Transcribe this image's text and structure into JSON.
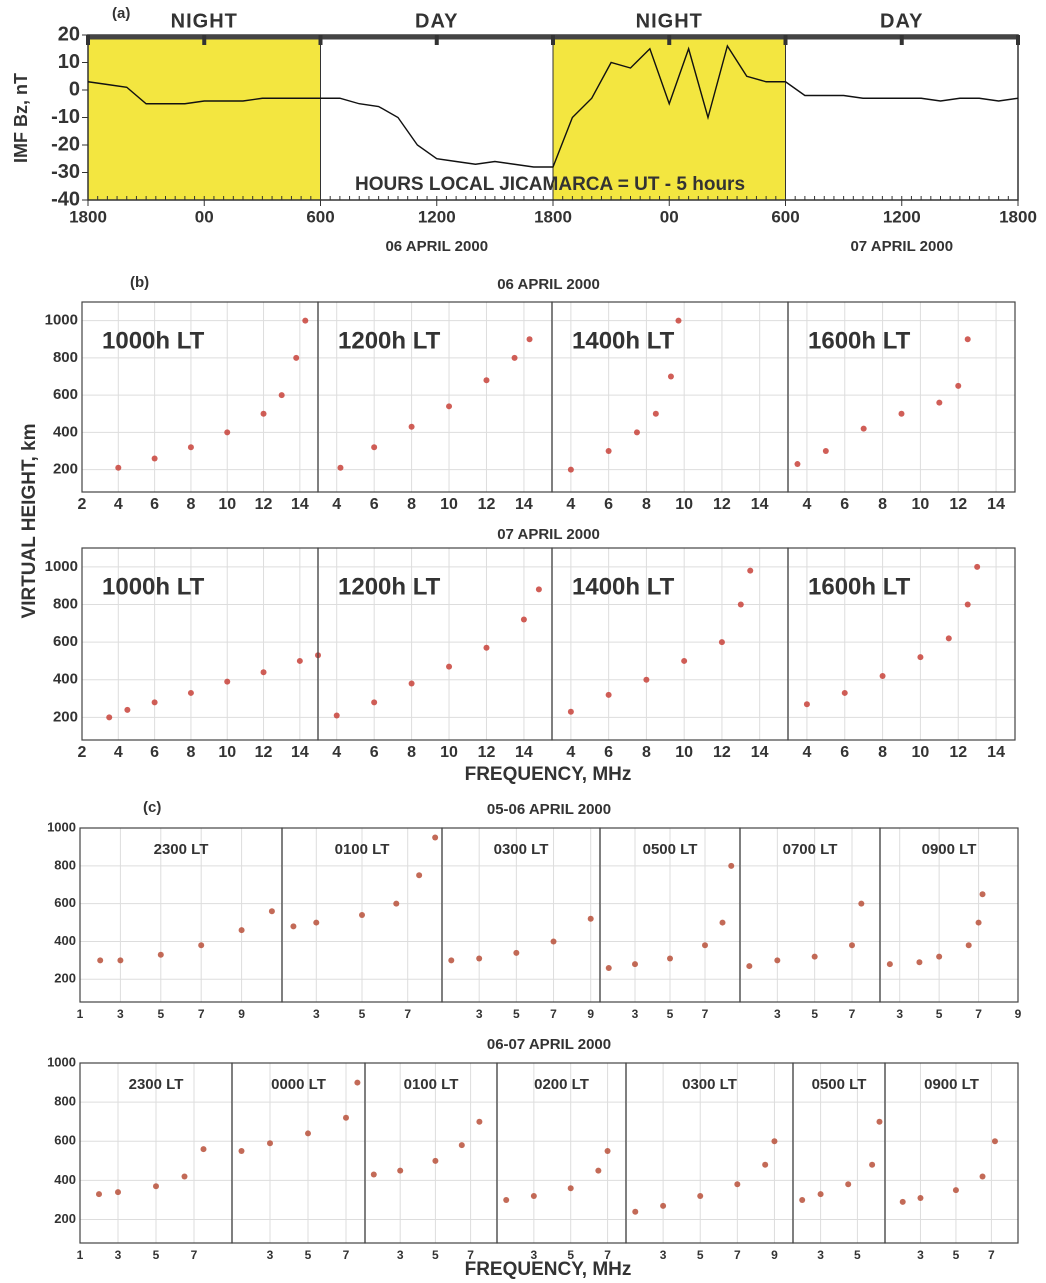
{
  "chart_data": [
    {
      "type": "line",
      "panel_label": "(a)",
      "ylabel": "IMF Bz, nT",
      "subtitle": "HOURS  LOCAL  JICAMARCA = UT -  5 hours",
      "color": "#111111",
      "shade_color": "#f3e640",
      "periods": [
        {
          "label": "NIGHT",
          "start": 0,
          "end": 12,
          "shaded": true
        },
        {
          "label": "DAY",
          "start": 12,
          "end": 24,
          "shaded": false
        },
        {
          "label": "NIGHT",
          "start": 24,
          "end": 36,
          "shaded": true
        },
        {
          "label": "DAY",
          "start": 36,
          "end": 48,
          "shaded": false
        }
      ],
      "date_labels": [
        {
          "text": "06 APRIL  2000",
          "x": 18
        },
        {
          "text": "07 APRIL  2000",
          "x": 42
        }
      ],
      "x": [
        0,
        1,
        2,
        3,
        4,
        5,
        6,
        7,
        8,
        9,
        10,
        11,
        12,
        13,
        14,
        15,
        16,
        17,
        18,
        19,
        20,
        21,
        22,
        23,
        24,
        25,
        26,
        27,
        28,
        29,
        30,
        31,
        32,
        33,
        34,
        35,
        36,
        37,
        38,
        39,
        40,
        41,
        42,
        43,
        44,
        45,
        46,
        47,
        48
      ],
      "values": [
        3,
        2,
        1,
        -5,
        -5,
        -5,
        -4,
        -4,
        -4,
        -3,
        -3,
        -3,
        -3,
        -3,
        -5,
        -6,
        -10,
        -20,
        -25,
        -26,
        -27,
        -26,
        -27,
        -28,
        -28,
        -10,
        -3,
        10,
        8,
        15,
        -5,
        15,
        -10,
        16,
        5,
        3,
        3,
        -2,
        -2,
        -2,
        -3,
        -3,
        -3,
        -3,
        -4,
        -3,
        -3,
        -4,
        -3
      ],
      "xlim": [
        0,
        48
      ],
      "xticks": [
        {
          "value": 0,
          "label": "1800"
        },
        {
          "value": 6,
          "label": "00"
        },
        {
          "value": 12,
          "label": "600"
        },
        {
          "value": 18,
          "label": "1200"
        },
        {
          "value": 24,
          "label": "1800"
        },
        {
          "value": 30,
          "label": "00"
        },
        {
          "value": 36,
          "label": "600"
        },
        {
          "value": 42,
          "label": "1200"
        },
        {
          "value": 48,
          "label": "1800"
        }
      ],
      "ylim": [
        -40,
        20
      ],
      "yticks": [
        -40,
        -30,
        -20,
        -10,
        0,
        10,
        20
      ]
    },
    {
      "type": "ionogram-row",
      "panel_label": "(b)",
      "title": "06 APRIL  2000",
      "ylabel": "VIRTUAL HEIGHT, km",
      "color": "#c8423a",
      "ylim": [
        80,
        1100
      ],
      "yticks": [
        200,
        400,
        600,
        800,
        1000
      ],
      "panels": [
        {
          "label": "1000h LT",
          "xlim": [
            2,
            15
          ],
          "xticks": [
            2,
            4,
            6,
            8,
            10,
            12,
            14
          ],
          "x": [
            4,
            6,
            8,
            10,
            12,
            13,
            13.8,
            14.3
          ],
          "values": [
            210,
            260,
            320,
            400,
            500,
            600,
            800,
            1000
          ]
        },
        {
          "label": "1200h LT",
          "xlim": [
            3,
            15.5
          ],
          "xticks": [
            4,
            6,
            8,
            10,
            12,
            14
          ],
          "x": [
            4.2,
            6,
            8,
            10,
            12,
            13.5,
            14.3
          ],
          "values": [
            210,
            320,
            430,
            540,
            680,
            800,
            900
          ]
        },
        {
          "label": "1400h LT",
          "xlim": [
            3,
            15.5
          ],
          "xticks": [
            4,
            6,
            8,
            10,
            12,
            14
          ],
          "x": [
            4,
            6,
            7.5,
            8.5,
            9.3,
            9.7
          ],
          "values": [
            200,
            300,
            400,
            500,
            700,
            1000
          ]
        },
        {
          "label": "1600h LT",
          "xlim": [
            3,
            15
          ],
          "xticks": [
            4,
            6,
            8,
            10,
            12,
            14
          ],
          "x": [
            3.5,
            5,
            7,
            9,
            11,
            12,
            12.5
          ],
          "values": [
            230,
            300,
            420,
            500,
            560,
            650,
            900
          ]
        }
      ]
    },
    {
      "type": "ionogram-row",
      "title": "07 APRIL  2000",
      "xlabel": "FREQUENCY, MHz",
      "color": "#c8423a",
      "ylim": [
        80,
        1100
      ],
      "yticks": [
        200,
        400,
        600,
        800,
        1000
      ],
      "panels": [
        {
          "label": "1000h LT",
          "xlim": [
            2,
            15
          ],
          "xticks": [
            2,
            4,
            6,
            8,
            10,
            12,
            14
          ],
          "x": [
            3.5,
            4.5,
            6,
            8,
            10,
            12,
            14,
            15
          ],
          "values": [
            200,
            240,
            280,
            330,
            390,
            440,
            500,
            530
          ]
        },
        {
          "label": "1200h LT",
          "xlim": [
            3,
            15.5
          ],
          "xticks": [
            4,
            6,
            8,
            10,
            12,
            14
          ],
          "x": [
            4,
            6,
            8,
            10,
            12,
            14,
            14.8
          ],
          "values": [
            210,
            280,
            380,
            470,
            570,
            720,
            880
          ]
        },
        {
          "label": "1400h LT",
          "xlim": [
            3,
            15.5
          ],
          "xticks": [
            4,
            6,
            8,
            10,
            12,
            14
          ],
          "x": [
            4,
            6,
            8,
            10,
            12,
            13,
            13.5
          ],
          "values": [
            230,
            320,
            400,
            500,
            600,
            800,
            980
          ]
        },
        {
          "label": "1600h LT",
          "xlim": [
            3,
            15
          ],
          "xticks": [
            4,
            6,
            8,
            10,
            12,
            14
          ],
          "x": [
            4,
            6,
            8,
            10,
            11.5,
            12.5,
            13
          ],
          "values": [
            270,
            330,
            420,
            520,
            620,
            800,
            1000
          ]
        }
      ]
    },
    {
      "type": "ionogram-row",
      "panel_label": "(c)",
      "title": "05-06 APRIL  2000",
      "color": "#b8503a",
      "ylim": [
        80,
        1000
      ],
      "yticks": [
        200,
        400,
        600,
        800,
        1000
      ],
      "panels": [
        {
          "label": "2300 LT",
          "xlim": [
            1,
            11
          ],
          "xticks": [
            1,
            3,
            5,
            7,
            9
          ],
          "x": [
            2,
            3,
            5,
            7,
            9,
            10.5
          ],
          "values": [
            300,
            300,
            330,
            380,
            460,
            560
          ]
        },
        {
          "label": "0100 LT",
          "xlim": [
            1.5,
            8.5
          ],
          "xticks": [
            3,
            5,
            7
          ],
          "x": [
            2,
            3,
            5,
            6.5,
            7.5,
            8.2
          ],
          "values": [
            480,
            500,
            540,
            600,
            750,
            950
          ]
        },
        {
          "label": "0300 LT",
          "xlim": [
            1,
            9.5
          ],
          "xticks": [
            3,
            5,
            7,
            9
          ],
          "x": [
            1.5,
            3,
            5,
            7,
            9
          ],
          "values": [
            300,
            310,
            340,
            400,
            520
          ]
        },
        {
          "label": "0500 LT",
          "xlim": [
            1,
            9
          ],
          "xticks": [
            3,
            5,
            7
          ],
          "x": [
            1.5,
            3,
            5,
            7,
            8,
            8.5
          ],
          "values": [
            260,
            280,
            310,
            380,
            500,
            800
          ]
        },
        {
          "label": "0700 LT",
          "xlim": [
            1,
            8.5
          ],
          "xticks": [
            3,
            5,
            7
          ],
          "x": [
            1.5,
            3,
            5,
            7,
            7.5
          ],
          "values": [
            270,
            300,
            320,
            380,
            600
          ]
        },
        {
          "label": "0900 LT",
          "xlim": [
            2,
            9
          ],
          "xticks": [
            3,
            5,
            7,
            9
          ],
          "x": [
            2.5,
            4,
            5,
            6.5,
            7,
            7.2
          ],
          "values": [
            280,
            290,
            320,
            380,
            500,
            650
          ]
        }
      ]
    },
    {
      "type": "ionogram-row",
      "title": "06-07 APRIL  2000",
      "xlabel": "FREQUENCY, MHz",
      "color": "#b8503a",
      "ylim": [
        80,
        1000
      ],
      "yticks": [
        200,
        400,
        600,
        800,
        1000
      ],
      "panels": [
        {
          "label": "2300 LT",
          "xlim": [
            1,
            9
          ],
          "xticks": [
            1,
            3,
            5,
            7
          ],
          "x": [
            2,
            3,
            5,
            6.5,
            7.5
          ],
          "values": [
            330,
            340,
            370,
            420,
            560
          ]
        },
        {
          "label": "0000 LT",
          "xlim": [
            1,
            8
          ],
          "xticks": [
            3,
            5,
            7
          ],
          "x": [
            1.5,
            3,
            5,
            7,
            7.6
          ],
          "values": [
            550,
            590,
            640,
            720,
            900
          ]
        },
        {
          "label": "0100 LT",
          "xlim": [
            1,
            8.5
          ],
          "xticks": [
            3,
            5,
            7
          ],
          "x": [
            1.5,
            3,
            5,
            6.5,
            7.5
          ],
          "values": [
            430,
            450,
            500,
            580,
            700
          ]
        },
        {
          "label": "0200 LT",
          "xlim": [
            1,
            8
          ],
          "xticks": [
            3,
            5,
            7
          ],
          "x": [
            1.5,
            3,
            5,
            6.5,
            7
          ],
          "values": [
            300,
            320,
            360,
            450,
            550
          ]
        },
        {
          "label": "0300 LT",
          "xlim": [
            1,
            10
          ],
          "xticks": [
            3,
            5,
            7,
            9
          ],
          "x": [
            1.5,
            3,
            5,
            7,
            8.5,
            9
          ],
          "values": [
            240,
            270,
            320,
            380,
            480,
            600
          ]
        },
        {
          "label": "0500 LT",
          "xlim": [
            1.5,
            6.5
          ],
          "xticks": [
            3,
            5
          ],
          "x": [
            2,
            3,
            4.5,
            5.8,
            6.2
          ],
          "values": [
            300,
            330,
            380,
            480,
            700
          ]
        },
        {
          "label": "0900 LT",
          "xlim": [
            1,
            8.5
          ],
          "xticks": [
            3,
            5,
            7
          ],
          "x": [
            2,
            3,
            5,
            6.5,
            7.2
          ],
          "values": [
            290,
            310,
            350,
            420,
            600
          ]
        }
      ]
    }
  ]
}
